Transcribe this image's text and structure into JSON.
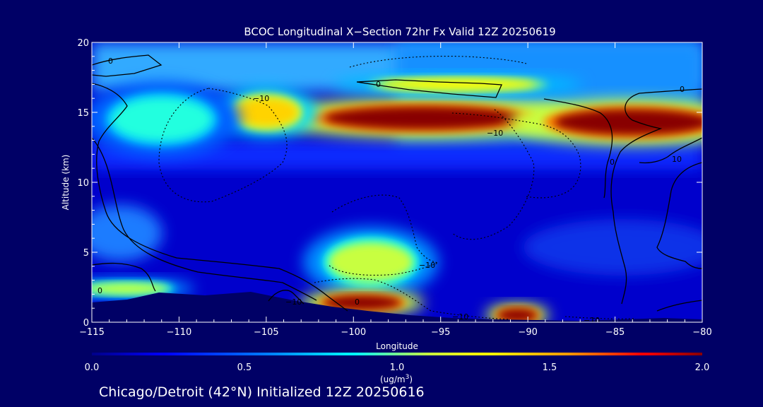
{
  "chart_data": {
    "type": "heatmap",
    "title": "BCOC Longitudinal X−Section 72hr  Fx Valid 12Z 20250619",
    "xlabel": "Longitude",
    "ylabel": "Altitude (km)",
    "xlim": [
      -115,
      -80
    ],
    "ylim": [
      0,
      20
    ],
    "x_ticks": [
      -115,
      -110,
      -105,
      -100,
      -95,
      -90,
      -85,
      -80
    ],
    "x_tick_labels": [
      "−115",
      "−110",
      "−105",
      "−100",
      "−95",
      "−90",
      "−85",
      "−80"
    ],
    "y_ticks": [
      0,
      5,
      10,
      15,
      20
    ],
    "y_tick_labels": [
      "0",
      "5",
      "10",
      "15",
      "20"
    ],
    "colorbar": {
      "range": [
        0.0,
        2.0
      ],
      "ticks": [
        0.0,
        0.5,
        1.0,
        1.5,
        2.0
      ],
      "tick_labels": [
        "0.0",
        "0.5",
        "1.0",
        "1.5",
        "2.0"
      ],
      "units_line1": "(ug/m",
      "units_sup": "3",
      "units_line2": ")"
    },
    "features": [
      {
        "lon": -96,
        "alt": 14.6,
        "value": 2.0
      },
      {
        "lon": -84,
        "alt": 14.3,
        "value": 2.0
      },
      {
        "lon": -105,
        "alt": 15.0,
        "value": 1.4
      },
      {
        "lon": -94,
        "alt": 17.0,
        "value": 1.3
      },
      {
        "lon": -99,
        "alt": 4.3,
        "value": 1.1
      },
      {
        "lon": -99.5,
        "alt": 1.4,
        "value": 2.0
      },
      {
        "lon": -90.6,
        "alt": 0.5,
        "value": 2.0
      },
      {
        "lon": -113,
        "alt": 2.4,
        "value": 1.1
      },
      {
        "lon": -111,
        "alt": 14.5,
        "value": 0.9
      }
    ],
    "contour_labels": [
      "0",
      "0",
      "0",
      "0",
      "0",
      "0",
      "−10",
      "−10",
      "−10",
      "−10",
      "−10",
      "−10",
      "10"
    ],
    "grid": false,
    "location_label": "Chicago/Detroit (42°N) Initialized 12Z 20250616"
  },
  "colors": {
    "background": "#000066",
    "max": "#8b0000",
    "min": "#0000a0"
  }
}
